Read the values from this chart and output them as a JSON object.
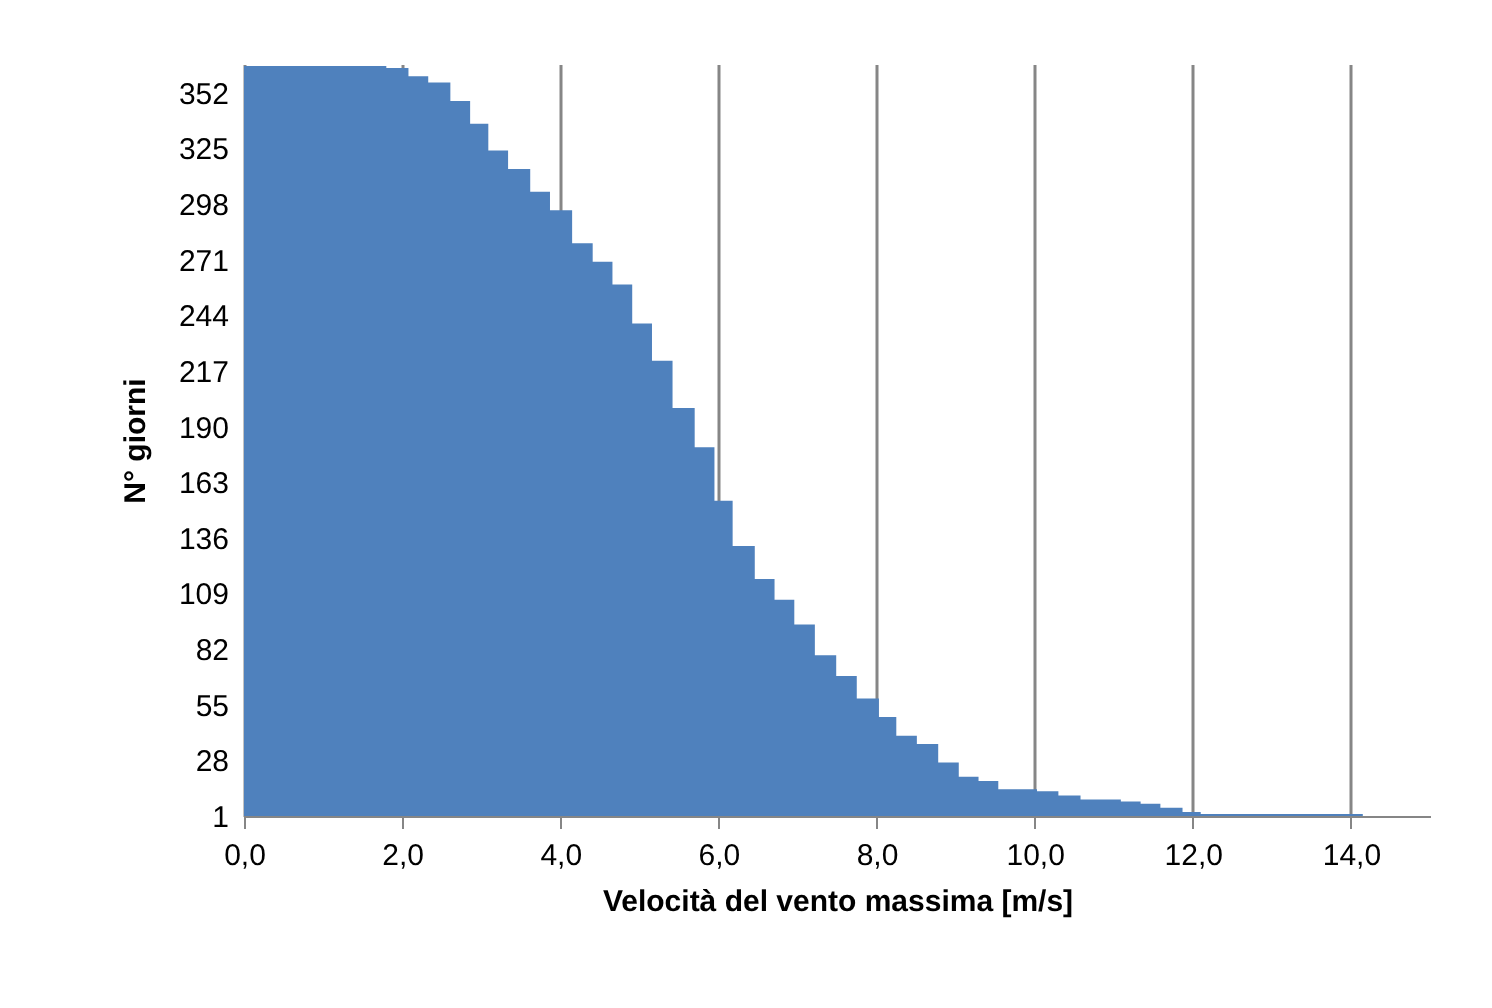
{
  "chart_data": {
    "type": "area",
    "xlabel": "Velocità del vento massima [m/s]",
    "ylabel": "N° giorni",
    "x": [
      0,
      1.8,
      2.08,
      2.33,
      2.61,
      2.86,
      3.09,
      3.34,
      3.62,
      3.87,
      4.15,
      4.41,
      4.66,
      4.91,
      5.16,
      5.42,
      5.7,
      5.95,
      6.18,
      6.46,
      6.71,
      6.96,
      7.22,
      7.49,
      7.75,
      8.03,
      8.25,
      8.51,
      8.78,
      9.04,
      9.29,
      9.54,
      10.03,
      10.3,
      10.58,
      11.09,
      11.34,
      11.59,
      11.87,
      12.1,
      14.15,
      15
    ],
    "series": [
      {
        "color": "#4f81bd",
        "values": [
          365,
          364,
          360,
          357,
          348,
          337,
          324,
          315,
          304,
          295,
          279,
          270,
          259,
          240,
          222,
          199,
          180,
          154,
          132,
          116,
          106,
          94,
          79,
          69,
          58,
          49,
          40,
          36,
          27,
          20,
          18,
          14,
          13,
          11,
          9,
          8,
          7,
          5,
          3,
          2,
          1,
          1
        ]
      }
    ],
    "xlim": [
      0,
      15
    ],
    "xticks": [
      {
        "value": 0,
        "label": "0,0"
      },
      {
        "value": 2,
        "label": "2,0"
      },
      {
        "value": 4,
        "label": "4,0"
      },
      {
        "value": 6,
        "label": "6,0"
      },
      {
        "value": 8,
        "label": "8,0"
      },
      {
        "value": 10,
        "label": "10,0"
      },
      {
        "value": 12,
        "label": "12,0"
      },
      {
        "value": 14,
        "label": "14,0"
      }
    ],
    "ylim": [
      1,
      366
    ],
    "yticks": [
      1,
      28,
      55,
      82,
      109,
      136,
      163,
      190,
      217,
      244,
      271,
      298,
      325,
      352
    ],
    "grid": "x"
  }
}
